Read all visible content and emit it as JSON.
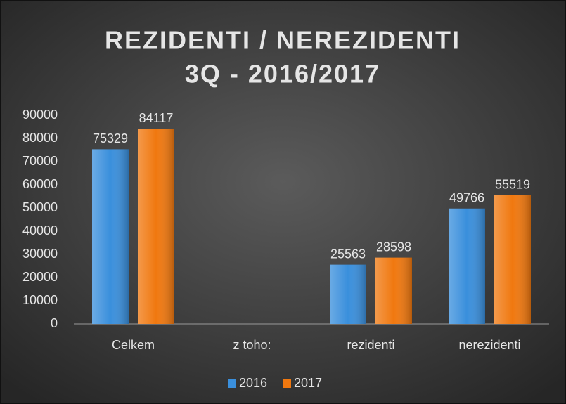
{
  "chart_data": {
    "type": "bar",
    "title": [
      "REZIDENTI / NEREZIDENTI",
      "3Q - 2016/2017"
    ],
    "categories": [
      "Celkem",
      "z toho:",
      "rezidenti",
      "nerezidenti"
    ],
    "series": [
      {
        "name": "2016",
        "color": "#3a8fdc",
        "values": [
          75329,
          null,
          25563,
          49766
        ]
      },
      {
        "name": "2017",
        "color": "#f0780f",
        "values": [
          84117,
          null,
          28598,
          55519
        ]
      }
    ],
    "ylim": [
      0,
      90000
    ],
    "yticks": [
      0,
      10000,
      20000,
      30000,
      40000,
      50000,
      60000,
      70000,
      80000,
      90000
    ],
    "grid": false,
    "legend": "bottom"
  }
}
